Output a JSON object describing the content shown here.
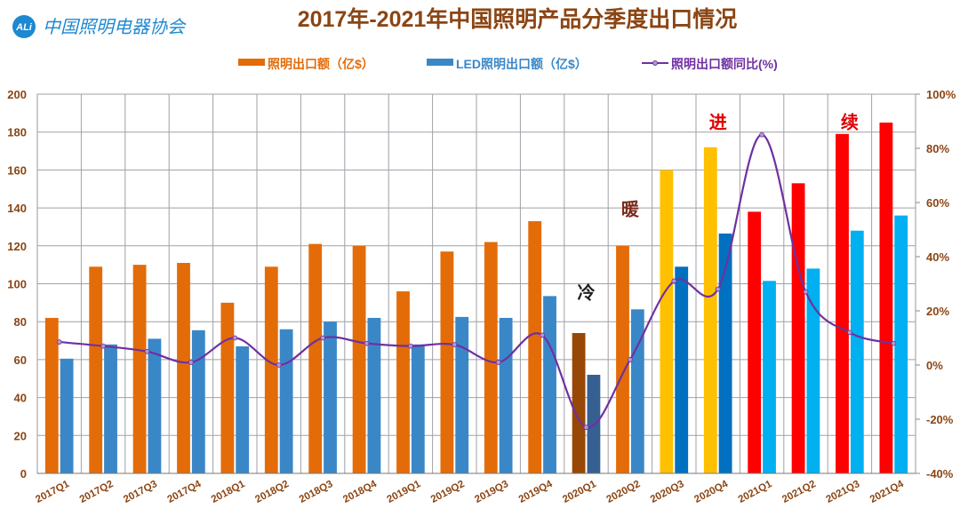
{
  "logo": {
    "text": "CALI 中国照明电器协会"
  },
  "chart_data": {
    "type": "bar",
    "title": "2017年-2021年中国照明产品分季度出口情况",
    "categories": [
      "2017Q1",
      "2017Q2",
      "2017Q3",
      "2017Q4",
      "2018Q1",
      "2018Q2",
      "2018Q3",
      "2018Q4",
      "2019Q1",
      "2019Q2",
      "2019Q3",
      "2019Q4",
      "2020Q1",
      "2020Q2",
      "2020Q3",
      "2020Q4",
      "2021Q1",
      "2021Q2",
      "2021Q3",
      "2021Q4"
    ],
    "series": [
      {
        "name": "照明出口额（亿$）",
        "type": "bar",
        "axis": "left",
        "color": "#E36C09",
        "values": [
          82,
          109,
          110,
          111,
          90,
          109,
          121,
          120,
          96,
          117,
          122,
          133,
          74,
          120,
          160,
          172,
          138,
          153,
          179,
          185
        ]
      },
      {
        "name": "LED照明出口额（亿$）",
        "type": "bar",
        "axis": "left",
        "color": "#3A87C8",
        "values": [
          60.5,
          68,
          71,
          75.5,
          67,
          76,
          80,
          82,
          68,
          82.5,
          82,
          93.5,
          52,
          86.5,
          109,
          126.5,
          101.5,
          108,
          128,
          136
        ]
      },
      {
        "name": "照明出口额同比(%)",
        "type": "line",
        "axis": "right",
        "color": "#7030A0",
        "values": [
          8.5,
          7,
          5,
          1,
          10,
          0,
          10,
          8,
          7,
          7.5,
          1,
          11,
          -23,
          2,
          31,
          28,
          85,
          27,
          12,
          8
        ]
      }
    ],
    "bar_color_overrides": {
      "2020Q1": [
        "#974706",
        "#366092"
      ],
      "2020Q2": [
        "#E36C09",
        "#3A87C8"
      ],
      "2020Q3": [
        "#FFC000",
        "#0070C0"
      ],
      "2020Q4": [
        "#FFC000",
        "#0070C0"
      ],
      "2021Q1": [
        "#FF0000",
        "#00B0F0"
      ],
      "2021Q2": [
        "#FF0000",
        "#00B0F0"
      ],
      "2021Q3": [
        "#FF0000",
        "#00B0F0"
      ],
      "2021Q4": [
        "#FF0000",
        "#00B0F0"
      ]
    },
    "ylim": [
      0,
      200
    ],
    "yticks": [
      "0",
      "20",
      "40",
      "60",
      "80",
      "100",
      "120",
      "140",
      "160",
      "180",
      "200"
    ],
    "y2lim": [
      -40,
      100
    ],
    "y2ticks": [
      "-40%",
      "-20%",
      "0%",
      "20%",
      "40%",
      "60%",
      "80%",
      "100%"
    ],
    "grid": true,
    "legend_placement": "top",
    "annotations": [
      {
        "text": "冷",
        "category": "2020Q1",
        "value": 92,
        "color": "#222222"
      },
      {
        "text": "暖",
        "category": "2020Q2",
        "value": 136,
        "color": "#7A2A1A"
      },
      {
        "text": "进",
        "category": "2020Q4",
        "value": 182,
        "color": "#E00000"
      },
      {
        "text": "续",
        "category": "2021Q3",
        "value": 182,
        "color": "#E00000"
      }
    ]
  }
}
